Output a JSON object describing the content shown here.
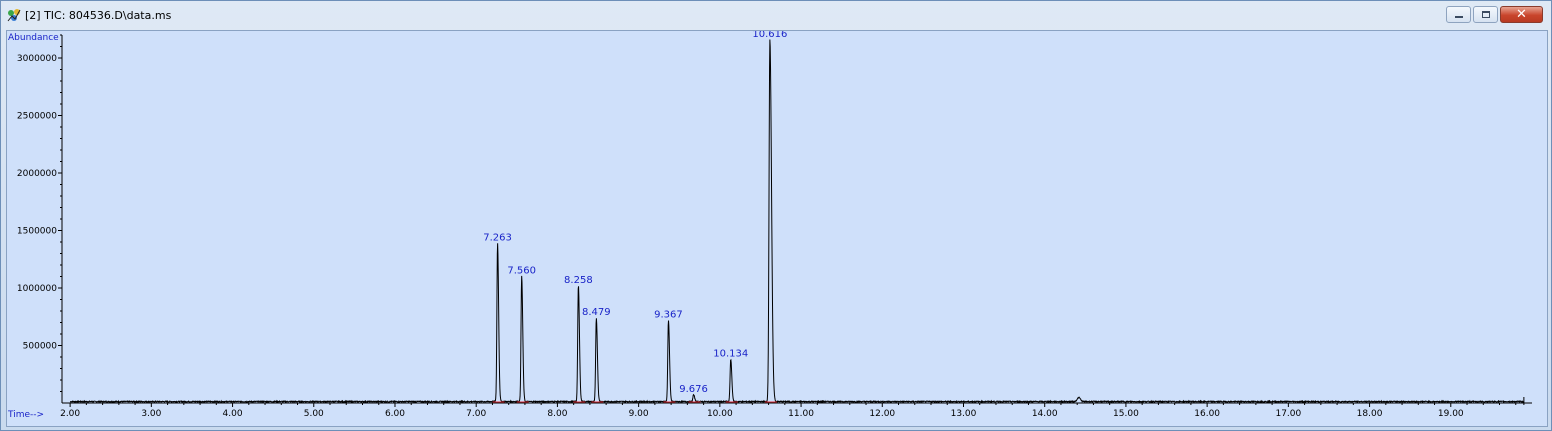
{
  "window": {
    "title": "[2] TIC: 804536.D\\data.ms",
    "controls": {
      "minimize_icon": "minimize-icon",
      "maximize_icon": "restore-icon",
      "close_icon": "close-icon"
    }
  },
  "colors": {
    "plot_bg": "#cfe0fa",
    "trace": "#000000",
    "peak_label": "#1a24c8",
    "baseline_marker": "#e0303a"
  },
  "chart_data": {
    "type": "line",
    "title": "",
    "xlabel": "Time-->",
    "ylabel": "Abundance",
    "xlim": [
      1.9,
      20.0
    ],
    "ylim": [
      0,
      3200000
    ],
    "x_ticks": [
      "2.00",
      "3.00",
      "4.00",
      "5.00",
      "6.00",
      "7.00",
      "8.00",
      "9.00",
      "10.00",
      "11.00",
      "12.00",
      "13.00",
      "14.00",
      "15.00",
      "16.00",
      "17.00",
      "18.00",
      "19.00"
    ],
    "y_ticks": [
      "500000",
      "1000000",
      "1500000",
      "2000000",
      "2500000",
      "3000000"
    ],
    "grid": false,
    "series": [
      {
        "peaks": [
          {
            "rt": 7.263,
            "label": "7.263",
            "abundance": 1380000
          },
          {
            "rt": 7.56,
            "label": "7.560",
            "abundance": 1090000
          },
          {
            "rt": 8.258,
            "label": "8.258",
            "abundance": 1010000
          },
          {
            "rt": 8.479,
            "label": "8.479",
            "abundance": 730000
          },
          {
            "rt": 9.367,
            "label": "9.367",
            "abundance": 710000
          },
          {
            "rt": 9.676,
            "label": "9.676",
            "abundance": 60000
          },
          {
            "rt": 10.134,
            "label": "10.134",
            "abundance": 370000
          },
          {
            "rt": 10.616,
            "label": "10.616",
            "abundance": 3150000
          }
        ]
      }
    ]
  }
}
